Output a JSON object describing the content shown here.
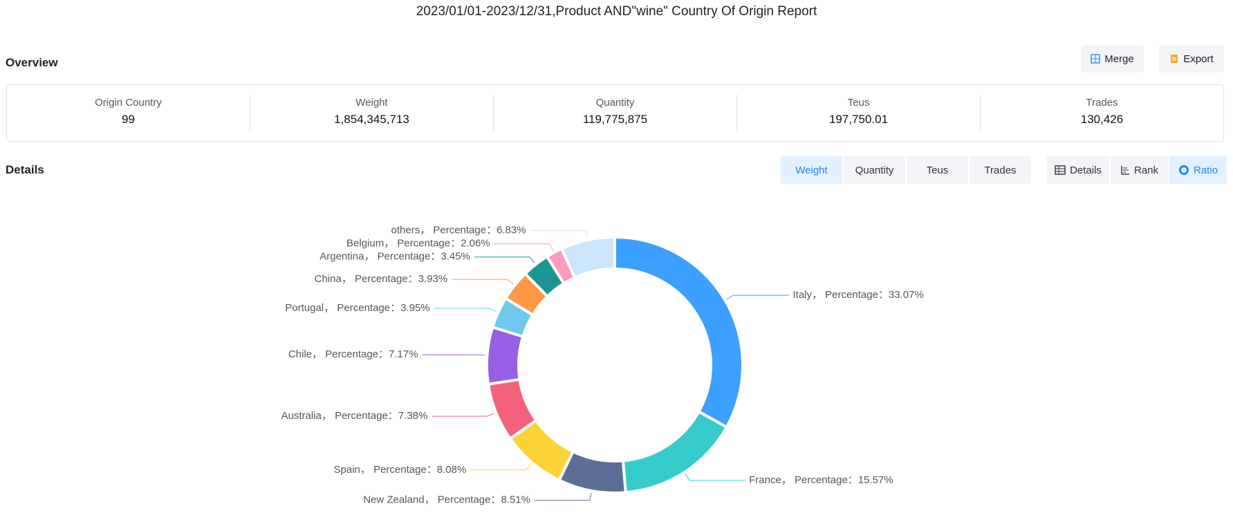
{
  "header": {
    "title": "2023/01/01-2023/12/31,Product AND\"wine\" Country Of Origin Report"
  },
  "overview": {
    "title": "Overview",
    "buttons": [
      "Merge",
      "Export"
    ],
    "stats": [
      {
        "label": "Origin Country",
        "value": "99"
      },
      {
        "label": "Weight",
        "value": "1,854,345,713"
      },
      {
        "label": "Quantity",
        "value": "119,775,875"
      },
      {
        "label": "Teus",
        "value": "197,750.01"
      },
      {
        "label": "Trades",
        "value": "130,426"
      }
    ]
  },
  "details": {
    "title": "Details",
    "metric_tabs": [
      "Weight",
      "Quantity",
      "Teus",
      "Trades"
    ],
    "view_tabs": [
      "Details",
      "Rank",
      "Ratio"
    ]
  },
  "chart_data": {
    "type": "donut",
    "values": [
      33.07,
      15.57,
      8.51,
      8.08,
      7.38,
      7.17,
      3.95,
      3.93,
      3.45,
      2.06,
      6.83
    ],
    "value_labels": [
      "Italy， Percentage：33.07%",
      "France， Percentage：15.57%",
      "New Zealand， Percentage：8.51%",
      "Spain， Percentage：8.08%",
      "Australia， Percentage：7.38%",
      "Chile， Percentage：7.17%",
      "Portugal， Percentage：3.95%",
      "China， Percentage：3.93%",
      "Argentina， Percentage：3.45%",
      "Belgium， Percentage：2.06%",
      "others， Percentage：6.83%"
    ],
    "colors": [
      "#3ba0ff",
      "#36cbcb",
      "#5b6e96",
      "#fad337",
      "#f2637b",
      "#975fe4",
      "#6dc8ec",
      "#ff9845",
      "#1e9493",
      "#ff99c3",
      "#cde5fc"
    ]
  }
}
